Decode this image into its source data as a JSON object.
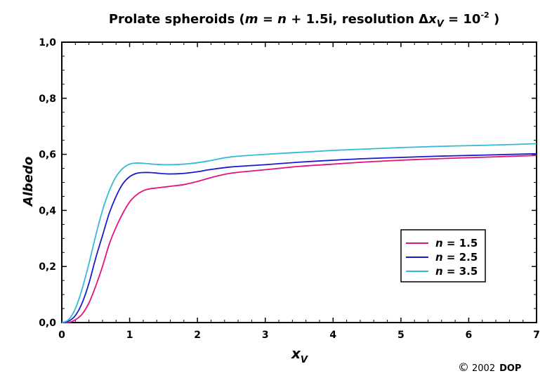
{
  "chart_data": {
    "type": "line",
    "title": {
      "prefix": "Prolate spheroids (",
      "m_var": "m",
      "eq1": " = ",
      "n_var": "n",
      "mid": " + 1.5i, resolution ",
      "delta": "Δ",
      "x_var": "x",
      "x_sub": "V",
      "eq2": " = 10",
      "exp": "-2",
      "suffix": " )"
    },
    "xlabel": {
      "base": "x",
      "sub": "V"
    },
    "ylabel": "Albedo",
    "xlim": [
      0,
      7
    ],
    "ylim": [
      0,
      1.0
    ],
    "x_ticks": [
      "0",
      "1",
      "2",
      "3",
      "4",
      "5",
      "6",
      "7"
    ],
    "y_ticks": [
      "0,0",
      "0,2",
      "0,4",
      "0,6",
      "0,8",
      "1,0"
    ],
    "grid": false,
    "legend_position": "lower-right",
    "series": [
      {
        "name": "n = 1.5",
        "legend": {
          "var": "n",
          "rest": " = 1.5"
        },
        "color": "#e0147a",
        "x": [
          0,
          0.1,
          0.2,
          0.3,
          0.4,
          0.5,
          0.6,
          0.7,
          0.8,
          0.9,
          1.0,
          1.1,
          1.2,
          1.3,
          1.4,
          1.5,
          1.6,
          1.8,
          2.0,
          2.2,
          2.5,
          3.0,
          3.5,
          4.0,
          4.5,
          5.0,
          5.5,
          6.0,
          6.5,
          7.0
        ],
        "values": [
          0,
          0.0,
          0.01,
          0.03,
          0.07,
          0.13,
          0.2,
          0.28,
          0.34,
          0.39,
          0.43,
          0.455,
          0.47,
          0.477,
          0.48,
          0.483,
          0.486,
          0.492,
          0.503,
          0.517,
          0.533,
          0.545,
          0.557,
          0.565,
          0.573,
          0.579,
          0.584,
          0.588,
          0.592,
          0.596
        ]
      },
      {
        "name": "n = 2.5",
        "legend": {
          "var": "n",
          "rest": " = 2.5"
        },
        "color": "#1a1acc",
        "x": [
          0,
          0.1,
          0.2,
          0.3,
          0.4,
          0.5,
          0.6,
          0.7,
          0.8,
          0.9,
          1.0,
          1.1,
          1.2,
          1.3,
          1.4,
          1.5,
          1.6,
          1.8,
          2.0,
          2.2,
          2.5,
          3.0,
          3.5,
          4.0,
          4.5,
          5.0,
          5.5,
          6.0,
          6.5,
          7.0
        ],
        "values": [
          0,
          0.005,
          0.025,
          0.07,
          0.14,
          0.23,
          0.31,
          0.39,
          0.45,
          0.495,
          0.52,
          0.532,
          0.535,
          0.535,
          0.533,
          0.531,
          0.53,
          0.532,
          0.538,
          0.546,
          0.555,
          0.563,
          0.572,
          0.579,
          0.585,
          0.589,
          0.593,
          0.596,
          0.599,
          0.602
        ]
      },
      {
        "name": "n = 3.5",
        "legend": {
          "var": "n",
          "rest": " = 3.5"
        },
        "color": "#33bbd5",
        "x": [
          0,
          0.1,
          0.2,
          0.3,
          0.4,
          0.5,
          0.6,
          0.7,
          0.8,
          0.9,
          1.0,
          1.1,
          1.2,
          1.3,
          1.4,
          1.5,
          1.6,
          1.8,
          2.0,
          2.2,
          2.5,
          3.0,
          3.5,
          4.0,
          4.5,
          5.0,
          5.5,
          6.0,
          6.5,
          7.0
        ],
        "values": [
          0,
          0.01,
          0.05,
          0.12,
          0.21,
          0.31,
          0.4,
          0.47,
          0.52,
          0.55,
          0.565,
          0.569,
          0.568,
          0.566,
          0.564,
          0.563,
          0.563,
          0.565,
          0.57,
          0.578,
          0.591,
          0.6,
          0.607,
          0.614,
          0.619,
          0.624,
          0.628,
          0.631,
          0.634,
          0.638
        ]
      }
    ]
  },
  "copyright": {
    "symbol": "©",
    "year": "2002",
    "author": "DOP"
  }
}
